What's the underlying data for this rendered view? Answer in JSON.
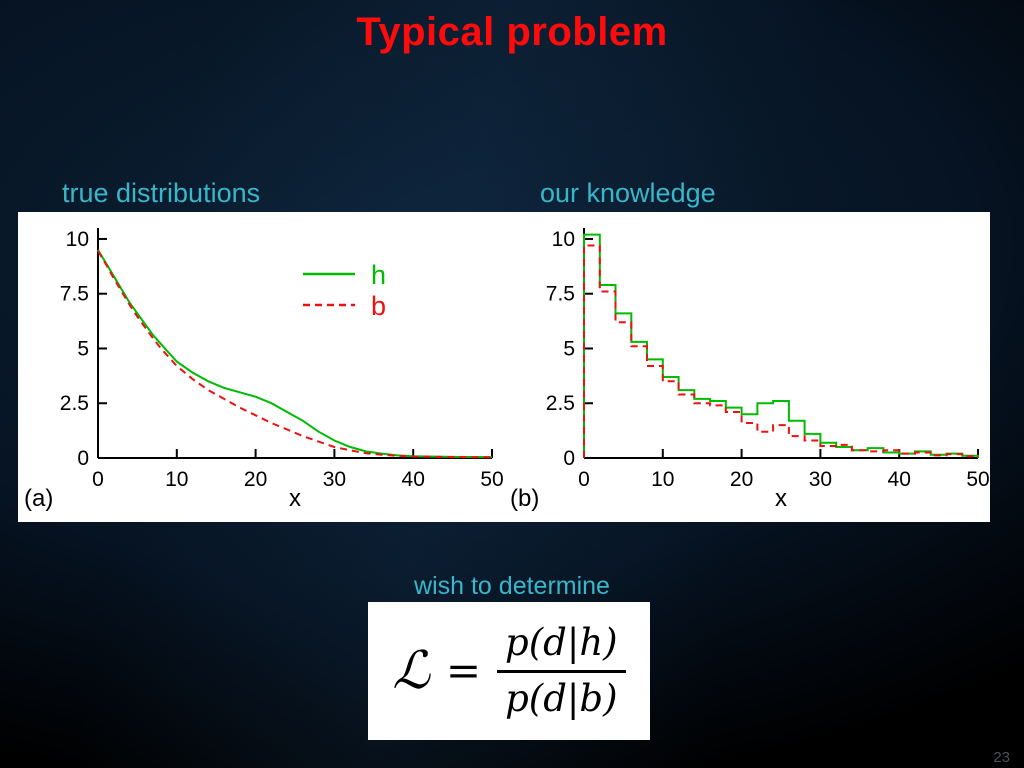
{
  "slide": {
    "title": "Typical problem",
    "label_left": "true distributions",
    "label_right": "our knowledge",
    "wish_text": "wish to determine",
    "page_number": "23",
    "colors": {
      "title_red": "#ff0b0b",
      "cyan": "#38b6ca",
      "curve_green": "#00bb00",
      "curve_red": "#ee1111"
    }
  },
  "formula": {
    "lhs": "ℒ",
    "eq": "=",
    "numerator": "p(d|h)",
    "denominator": "p(d|b)"
  },
  "chart_data": [
    {
      "type": "line",
      "panel_label": "(a)",
      "xlabel": "x",
      "xlim": [
        0,
        50
      ],
      "ylim": [
        0,
        10.5
      ],
      "xticks": [
        0,
        10,
        20,
        30,
        40,
        50
      ],
      "yticks": [
        0,
        2.5,
        5,
        7.5,
        10
      ],
      "grid": false,
      "legend_position": "upper right",
      "legend": [
        {
          "label": "h",
          "color": "#00bb00",
          "dashed": false
        },
        {
          "label": "b",
          "color": "#ee1111",
          "dashed": true
        }
      ],
      "series": [
        {
          "name": "h",
          "color": "#00bb00",
          "dashed": false,
          "x": [
            0,
            1,
            2,
            3,
            4,
            5,
            6,
            7,
            8,
            9,
            10,
            12,
            14,
            16,
            18,
            20,
            22,
            24,
            26,
            28,
            30,
            32,
            34,
            36,
            38,
            40,
            45,
            50
          ],
          "y": [
            9.5,
            8.9,
            8.3,
            7.7,
            7.1,
            6.6,
            6.1,
            5.6,
            5.2,
            4.8,
            4.4,
            3.9,
            3.5,
            3.2,
            3.0,
            2.8,
            2.5,
            2.1,
            1.7,
            1.2,
            0.8,
            0.5,
            0.3,
            0.2,
            0.12,
            0.08,
            0.05,
            0.04
          ]
        },
        {
          "name": "b",
          "color": "#ee1111",
          "dashed": true,
          "x": [
            0,
            1,
            2,
            3,
            4,
            5,
            6,
            7,
            8,
            9,
            10,
            12,
            14,
            16,
            18,
            20,
            22,
            24,
            26,
            28,
            30,
            32,
            34,
            36,
            38,
            40,
            45,
            50
          ],
          "y": [
            9.45,
            8.85,
            8.2,
            7.6,
            7.0,
            6.45,
            5.95,
            5.45,
            5.0,
            4.6,
            4.2,
            3.6,
            3.1,
            2.7,
            2.3,
            1.95,
            1.6,
            1.3,
            1.0,
            0.75,
            0.5,
            0.35,
            0.22,
            0.15,
            0.1,
            0.07,
            0.04,
            0.03
          ]
        }
      ]
    },
    {
      "type": "histogram",
      "panel_label": "(b)",
      "xlabel": "x",
      "xlim": [
        0,
        50
      ],
      "ylim": [
        0,
        10.5
      ],
      "xticks": [
        0,
        10,
        20,
        30,
        40,
        50
      ],
      "yticks": [
        0,
        2.5,
        5,
        7.5,
        10
      ],
      "grid": false,
      "bin_start": 0,
      "bin_width": 2,
      "series": [
        {
          "name": "h",
          "color": "#00bb00",
          "dashed": false,
          "counts": [
            10.2,
            7.9,
            6.6,
            5.3,
            4.5,
            3.7,
            3.1,
            2.7,
            2.6,
            2.3,
            2.0,
            2.5,
            2.6,
            1.7,
            1.1,
            0.7,
            0.5,
            0.35,
            0.45,
            0.25,
            0.2,
            0.3,
            0.15,
            0.2,
            0.1
          ]
        },
        {
          "name": "b",
          "color": "#ee1111",
          "dashed": true,
          "counts": [
            9.7,
            7.6,
            6.2,
            5.1,
            4.2,
            3.5,
            2.9,
            2.5,
            2.4,
            2.1,
            1.6,
            1.2,
            1.5,
            1.0,
            0.8,
            0.55,
            0.6,
            0.35,
            0.3,
            0.35,
            0.2,
            0.25,
            0.12,
            0.18,
            0.08
          ]
        }
      ]
    }
  ]
}
